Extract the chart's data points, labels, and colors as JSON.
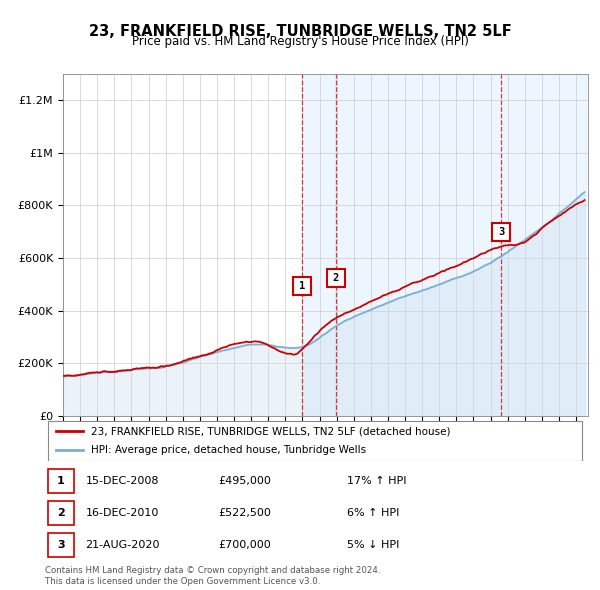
{
  "title": "23, FRANKFIELD RISE, TUNBRIDGE WELLS, TN2 5LF",
  "subtitle": "Price paid vs. HM Land Registry's House Price Index (HPI)",
  "ylim": [
    0,
    1300000
  ],
  "yticks": [
    0,
    200000,
    400000,
    600000,
    800000,
    1000000,
    1200000
  ],
  "ytick_labels": [
    "£0",
    "£200K",
    "£400K",
    "£600K",
    "£800K",
    "£1M",
    "£1.2M"
  ],
  "sale_color": "#cc0000",
  "hpi_color": "#7bafd4",
  "hpi_fill_color": "#c8dff0",
  "shade_color": "#ddeeff",
  "sale_dates_numeric": [
    2008.958,
    2010.958,
    2020.625
  ],
  "sale_prices": [
    495000,
    522500,
    700000
  ],
  "sale_labels": [
    "1",
    "2",
    "3"
  ],
  "sale_info": [
    {
      "num": "1",
      "date": "15-DEC-2008",
      "price": "£495,000",
      "pct": "17%",
      "dir": "↑",
      "rel": "HPI"
    },
    {
      "num": "2",
      "date": "16-DEC-2010",
      "price": "£522,500",
      "pct": "6%",
      "dir": "↑",
      "rel": "HPI"
    },
    {
      "num": "3",
      "date": "21-AUG-2020",
      "price": "£700,000",
      "pct": "5%",
      "dir": "↓",
      "rel": "HPI"
    }
  ],
  "legend_sale_label": "23, FRANKFIELD RISE, TUNBRIDGE WELLS, TN2 5LF (detached house)",
  "legend_hpi_label": "HPI: Average price, detached house, Tunbridge Wells",
  "footer1": "Contains HM Land Registry data © Crown copyright and database right 2024.",
  "footer2": "This data is licensed under the Open Government Licence v3.0."
}
